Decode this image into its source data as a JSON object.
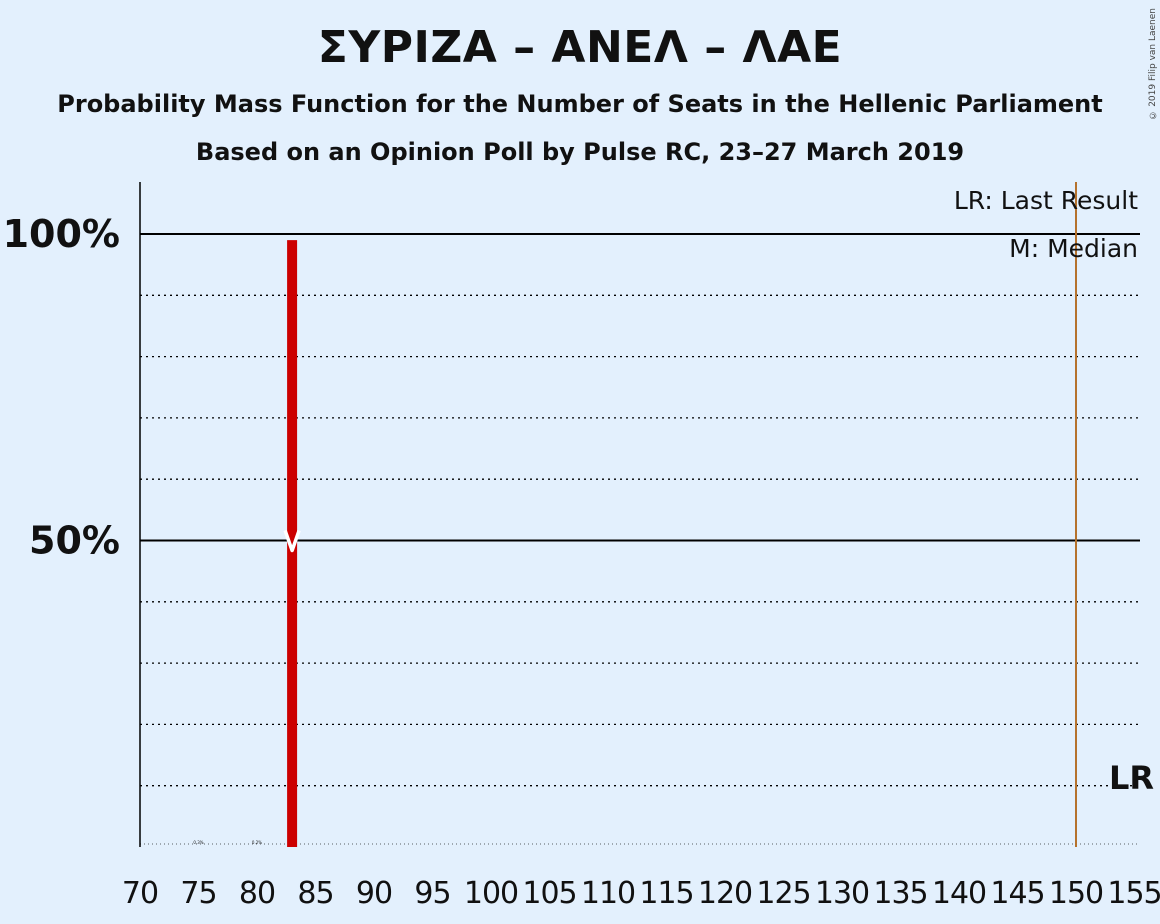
{
  "title": "ΣΥΡΙΖΑ – ΑΝΕΛ – ΛΑΕ",
  "subtitle1": "Probability Mass Function for the Number of Seats in the Hellenic Parliament",
  "subtitle2": "Based on an Opinion Poll by Pulse RC, 23–27 March 2019",
  "copyright": "© 2019 Filip van Laenen",
  "legend": {
    "last_result": "LR: Last Result",
    "median": "M: Median"
  },
  "lr_label": "LR",
  "median_marker": "M",
  "colors": {
    "background": "#e3f0fd",
    "bar": "#cc0000",
    "last_result_line": "#b5722d",
    "grid": "#000000",
    "text": "#111111"
  },
  "chart_data": {
    "type": "bar",
    "xlabel": "",
    "ylabel": "",
    "x_ticks": [
      70,
      75,
      80,
      85,
      90,
      95,
      100,
      105,
      110,
      115,
      120,
      125,
      130,
      135,
      140,
      145,
      150,
      155
    ],
    "y_ticks": [
      {
        "value": 50,
        "label": "50%"
      },
      {
        "value": 100,
        "label": "100%"
      }
    ],
    "ylim": [
      0,
      100
    ],
    "xlim": [
      70,
      155
    ],
    "minor_gridlines": [
      10,
      20,
      30,
      40,
      60,
      70,
      80,
      90
    ],
    "values": [
      {
        "seats": 83,
        "probability": 99
      }
    ],
    "small_labels": [
      {
        "seats": 75,
        "text": "0.3%"
      },
      {
        "seats": 80,
        "text": "0.2%"
      }
    ],
    "median": 83,
    "last_result": 150
  }
}
